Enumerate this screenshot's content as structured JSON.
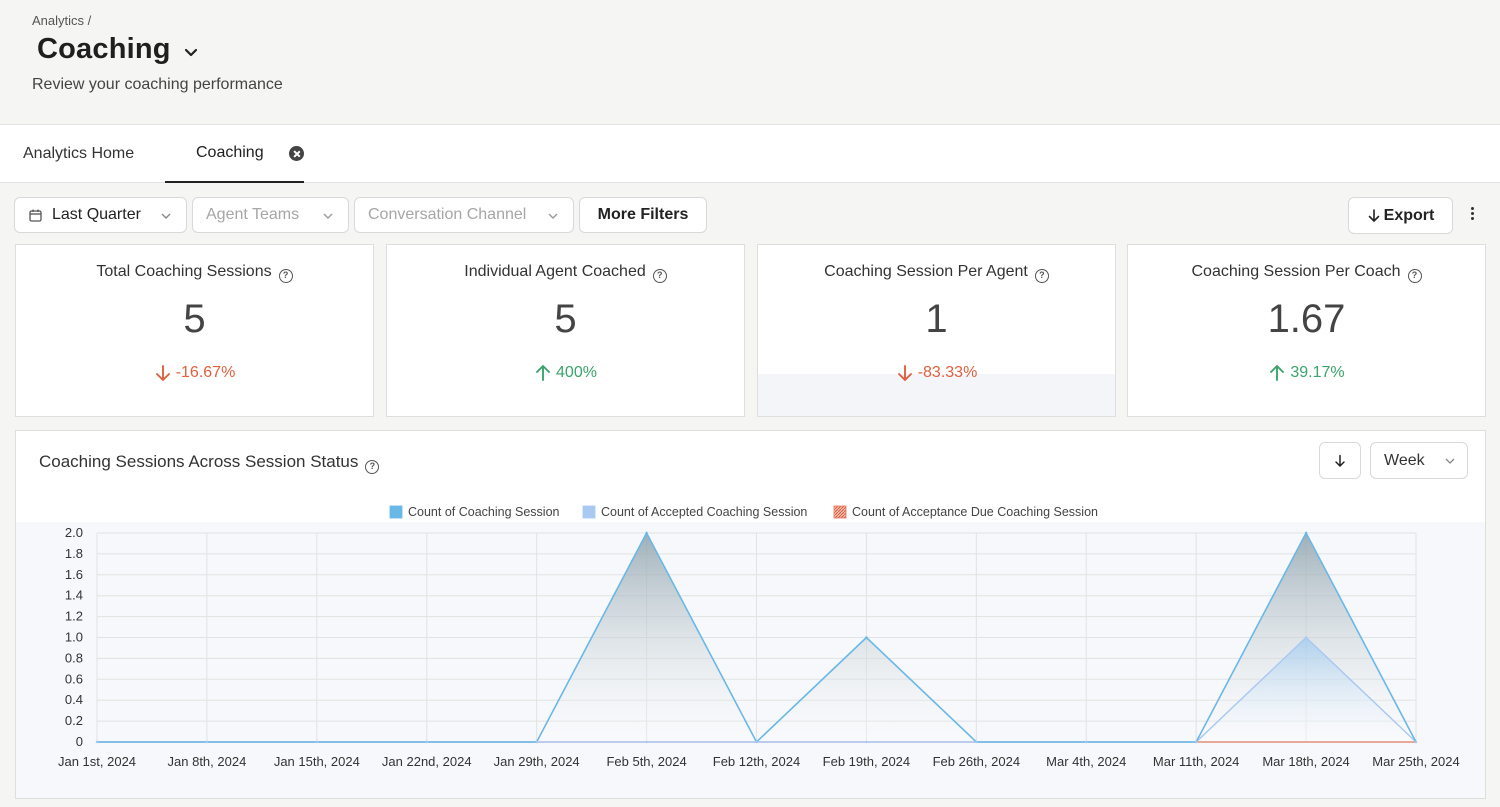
{
  "header": {
    "breadcrumb": "Analytics /",
    "title": "Coaching",
    "subtitle": "Review your coaching performance"
  },
  "tabs": [
    {
      "label": "Analytics Home",
      "active": false
    },
    {
      "label": "Coaching",
      "active": true
    }
  ],
  "filters": {
    "period": "Last Quarter",
    "agent_teams_placeholder": "Agent Teams",
    "channel_placeholder": "Conversation Channel",
    "more_filters": "More Filters"
  },
  "toolbar": {
    "export_label": "Export"
  },
  "metrics": [
    {
      "label": "Total Coaching Sessions",
      "value": "5",
      "delta": "-16.67%",
      "direction": "down"
    },
    {
      "label": "Individual Agent Coached",
      "value": "5",
      "delta": "400%",
      "direction": "up"
    },
    {
      "label": "Coaching Session Per Agent",
      "value": "1",
      "delta": "-83.33%",
      "direction": "down"
    },
    {
      "label": "Coaching Session Per Coach",
      "value": "1.67",
      "delta": "39.17%",
      "direction": "up"
    }
  ],
  "chart_panel": {
    "title": "Coaching Sessions Across Session Status",
    "interval": "Week"
  },
  "colors": {
    "series_1": "#6ab8e8",
    "series_2": "#a9c8f2",
    "series_3": "#e07a5f",
    "delta_down": "#e0603f",
    "delta_up": "#3aa46a"
  },
  "chart_data": {
    "type": "area",
    "legend_position": "top-center",
    "categories": [
      "Jan 1st, 2024",
      "Jan 8th, 2024",
      "Jan 15th, 2024",
      "Jan 22nd, 2024",
      "Jan 29th, 2024",
      "Feb 5th, 2024",
      "Feb 12th, 2024",
      "Feb 19th, 2024",
      "Feb 26th, 2024",
      "Mar 4th, 2024",
      "Mar 11th, 2024",
      "Mar 18th, 2024",
      "Mar 25th, 2024"
    ],
    "series": [
      {
        "name": "Count of Coaching Session",
        "values": [
          0,
          0,
          0,
          0,
          0,
          2,
          0,
          1,
          0,
          0,
          0,
          2,
          0
        ]
      },
      {
        "name": "Count of Accepted Coaching Session",
        "values": [
          0,
          0,
          0,
          0,
          0,
          0,
          0,
          0,
          0,
          0,
          0,
          1,
          0
        ]
      },
      {
        "name": "Count of Acceptance Due Coaching Session",
        "values": [
          0,
          0,
          0,
          0,
          0,
          0,
          0,
          0,
          0,
          0,
          0,
          0,
          0
        ]
      }
    ],
    "yticks": [
      "0",
      "0.2",
      "0.4",
      "0.6",
      "0.8",
      "1.0",
      "1.2",
      "1.4",
      "1.6",
      "1.8",
      "2.0"
    ],
    "ylim": [
      0,
      2
    ],
    "grid": true
  }
}
